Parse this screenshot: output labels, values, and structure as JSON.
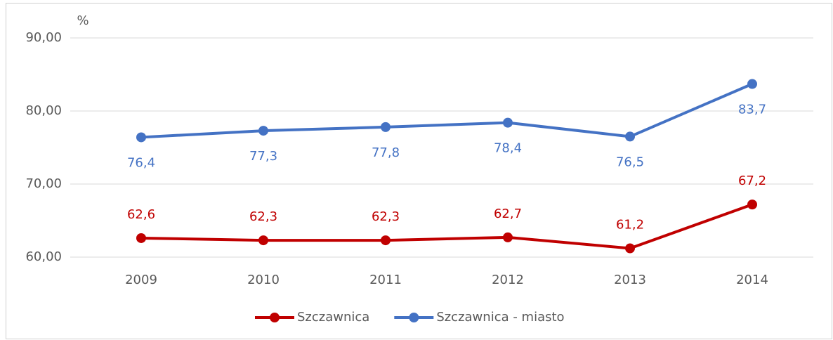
{
  "chart_data": {
    "type": "line",
    "y_label": "%",
    "categories": [
      "2009",
      "2010",
      "2011",
      "2012",
      "2013",
      "2014"
    ],
    "series": [
      {
        "name": "Szczawnica",
        "color": "#c00000",
        "values": [
          62.6,
          62.3,
          62.3,
          62.7,
          61.2,
          67.2
        ],
        "value_labels": [
          "62,6",
          "62,3",
          "62,3",
          "62,7",
          "61,2",
          "67,2"
        ]
      },
      {
        "name": "Szczawnica - miasto",
        "color": "#4472c4",
        "values": [
          76.4,
          77.3,
          77.8,
          78.4,
          76.5,
          83.7
        ],
        "value_labels": [
          "76,4",
          "77,3",
          "77,8",
          "78,4",
          "76,5",
          "83,7"
        ]
      }
    ],
    "ylim": [
      60,
      90
    ],
    "yticks": [
      {
        "value": 60,
        "label": "60,00"
      },
      {
        "value": 70,
        "label": "70,00"
      },
      {
        "value": 80,
        "label": "80,00"
      },
      {
        "value": 90,
        "label": "90,00"
      }
    ],
    "grid": true,
    "legend": "bottom"
  }
}
